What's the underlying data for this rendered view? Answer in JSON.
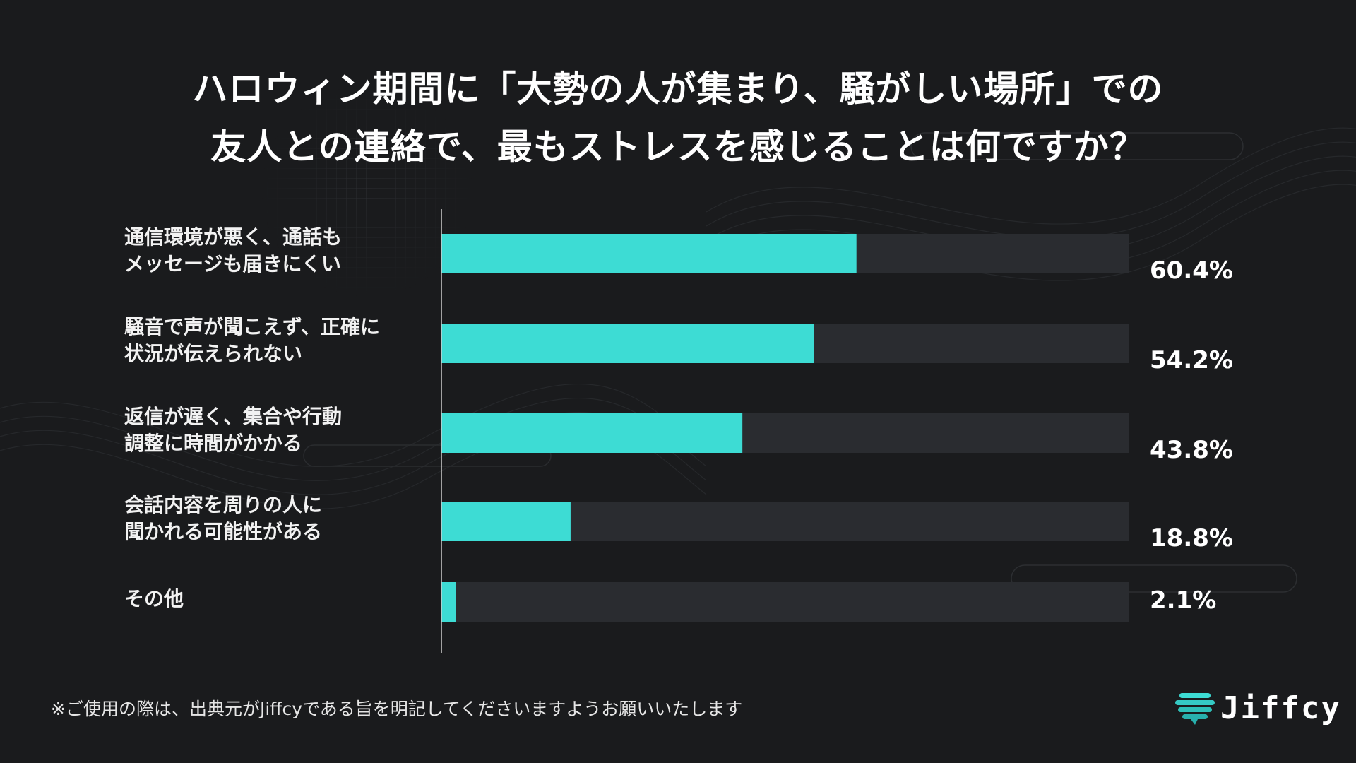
{
  "title": {
    "line1": "ハロウィン期間に「大勢の人が集まり、騒がしい場所」での",
    "line2": "友人との連絡で、最もストレスを感じることは何ですか？"
  },
  "colors": {
    "background": "#1a1b1d",
    "bar_fill": "#3ddcd4",
    "bar_track": "#2a2c30",
    "axis": "#cfcfcf"
  },
  "chart_data": {
    "type": "bar",
    "orientation": "horizontal",
    "title": "ハロウィン期間に「大勢の人が集まり、騒がしい場所」での友人との連絡で、最もストレスを感じることは何ですか？",
    "categories": [
      [
        "通信環境が悪く、通話も",
        "メッセージも届きにくい"
      ],
      [
        "騒音で声が聞こえず、正確に",
        "状況が伝えられない"
      ],
      [
        "返信が遅く、集合や行動",
        "調整に時間がかかる"
      ],
      [
        "会話内容を周りの人に",
        "聞かれる可能性がある"
      ],
      [
        "その他"
      ]
    ],
    "values": [
      60.4,
      54.2,
      43.8,
      18.8,
      2.1
    ],
    "value_labels": [
      "60.4%",
      "54.2%",
      "43.8%",
      "18.8%",
      "2.1%"
    ],
    "xlim": [
      0,
      100
    ],
    "unit": "%",
    "grid": false,
    "legend": "none"
  },
  "footnote": "※ご使用の際は、出典元がJiffcyである旨を明記してくださいますようお願いいたします",
  "logo": {
    "text": "Jiffcy",
    "icon": "speech-bubble-stack-icon"
  }
}
